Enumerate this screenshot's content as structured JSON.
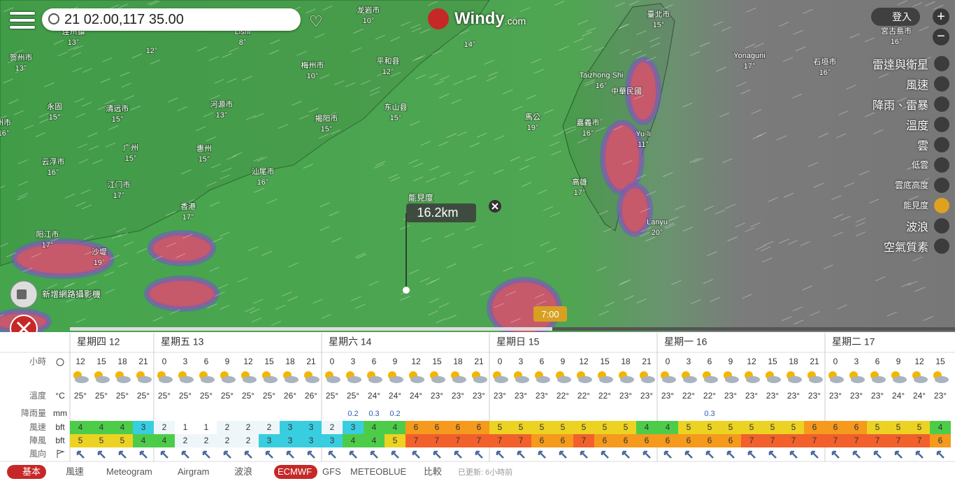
{
  "search": {
    "query": "21 02.00,117 35.00"
  },
  "logo": {
    "name": "Windy",
    "suffix": ".com"
  },
  "login": "登入",
  "layers": [
    "雷達與衛星",
    "風速",
    "降雨、雷暴",
    "溫度",
    "雲",
    "低雲",
    "雲底高度",
    "能見度",
    "波浪",
    "空氣質素"
  ],
  "map_labels": [
    {
      "name": "连州镇",
      "temp": "13°"
    },
    {
      "temp": "12°"
    },
    {
      "name": "Lishi",
      "temp": "8°"
    },
    {
      "name": "龙岩市",
      "temp": "10°"
    },
    {
      "name": "贺州市",
      "temp": "13°"
    },
    {
      "name": "梅州市",
      "temp": "10°"
    },
    {
      "name": "平和县",
      "temp": "12°"
    },
    {
      "name": "永固",
      "temp": "15°"
    },
    {
      "name": "清远市",
      "temp": "15°"
    },
    {
      "name": "河源市",
      "temp": "13°"
    },
    {
      "name": "揭阳市",
      "temp": "15°"
    },
    {
      "name": "东山县",
      "temp": "15°"
    },
    {
      "name": "州市",
      "temp": "16°"
    },
    {
      "name": "广州",
      "temp": "15°"
    },
    {
      "name": "惠州",
      "temp": "15°"
    },
    {
      "name": "云浮市",
      "temp": "16°"
    },
    {
      "name": "汕尾市",
      "temp": "16°"
    },
    {
      "name": "江门市",
      "temp": "17°"
    },
    {
      "name": "香港",
      "temp": "17°"
    },
    {
      "name": "阳江市",
      "temp": "17°"
    },
    {
      "name": "沙堤",
      "temp": "19°"
    },
    {
      "temp": "14°"
    },
    {
      "name": "臺北市",
      "temp": "15°"
    },
    {
      "name": "宮古島市",
      "temp": "16°"
    },
    {
      "name": "Yonaguni",
      "temp": "17°"
    },
    {
      "name": "石垣市",
      "temp": "16°"
    },
    {
      "name": "Taizhong Shi",
      "temp": "16°"
    },
    {
      "name": "中華民國"
    },
    {
      "name": "馬公",
      "temp": "19°"
    },
    {
      "name": "嘉義市",
      "temp": "16°"
    },
    {
      "name": "Yu-li",
      "temp": "11°"
    },
    {
      "name": "高雄",
      "temp": "17°"
    },
    {
      "name": "Lanyu",
      "temp": "20°"
    }
  ],
  "popup": {
    "label": "能見度",
    "value": "16.2km"
  },
  "webcam": "新增網路攝影機",
  "timeline": {
    "time": "7:00"
  },
  "forecast": {
    "days": [
      "星期四 12",
      "星期五 13",
      "星期六 14",
      "星期日 15",
      "星期一 16",
      "星期二 17"
    ],
    "row_labels": [
      {
        "name": "小時"
      },
      {
        "name": "溫度",
        "unit": "°C"
      },
      {
        "name": "降雨量",
        "unit": "mm"
      },
      {
        "name": "風速",
        "unit": "bft"
      },
      {
        "name": "陣風",
        "unit": "bft"
      },
      {
        "name": "風向"
      }
    ],
    "hours": [
      12,
      15,
      18,
      21,
      0,
      3,
      6,
      9,
      12,
      15,
      18,
      21,
      0,
      3,
      6,
      9,
      12,
      15,
      18,
      21,
      0,
      3,
      6,
      9,
      12,
      15,
      18,
      21,
      0,
      3,
      6,
      9,
      12,
      15,
      18,
      21,
      0,
      3,
      6,
      9,
      12,
      15
    ],
    "temperature": [
      "25°",
      "25°",
      "25°",
      "25°",
      "25°",
      "25°",
      "25°",
      "25°",
      "25°",
      "25°",
      "26°",
      "26°",
      "25°",
      "25°",
      "24°",
      "24°",
      "24°",
      "23°",
      "23°",
      "23°",
      "23°",
      "23°",
      "23°",
      "22°",
      "22°",
      "22°",
      "23°",
      "23°",
      "23°",
      "22°",
      "22°",
      "23°",
      "23°",
      "23°",
      "23°",
      "23°",
      "23°",
      "23°",
      "23°",
      "24°",
      "24°",
      "23°"
    ],
    "rain": [
      null,
      null,
      null,
      null,
      null,
      null,
      null,
      null,
      null,
      null,
      null,
      null,
      null,
      0.2,
      0.3,
      0.2,
      null,
      null,
      null,
      null,
      null,
      null,
      null,
      null,
      null,
      null,
      null,
      null,
      null,
      null,
      0.3,
      null,
      null,
      null,
      null,
      null,
      null,
      null,
      null,
      null,
      null,
      null
    ],
    "wind": [
      4,
      4,
      4,
      3,
      2,
      1,
      1,
      2,
      2,
      2,
      3,
      3,
      2,
      3,
      4,
      4,
      6,
      6,
      6,
      6,
      5,
      5,
      5,
      5,
      5,
      5,
      5,
      4,
      4,
      5,
      5,
      5,
      5,
      5,
      5,
      6,
      6,
      6,
      5,
      5,
      5,
      4
    ],
    "gusts": [
      5,
      5,
      5,
      4,
      4,
      2,
      2,
      2,
      2,
      3,
      3,
      3,
      3,
      4,
      4,
      5,
      7,
      7,
      7,
      7,
      7,
      7,
      6,
      6,
      7,
      6,
      6,
      6,
      6,
      6,
      6,
      6,
      7,
      7,
      7,
      7,
      7,
      7,
      7,
      7,
      7,
      6
    ]
  },
  "footer": {
    "tabs": [
      "基本",
      "風速",
      "Meteogram",
      "Airgram",
      "波浪"
    ],
    "models": [
      "ECMWF",
      "GFS",
      "METEOBLUE",
      "比較"
    ],
    "updated": "已更新: 6小時前"
  }
}
